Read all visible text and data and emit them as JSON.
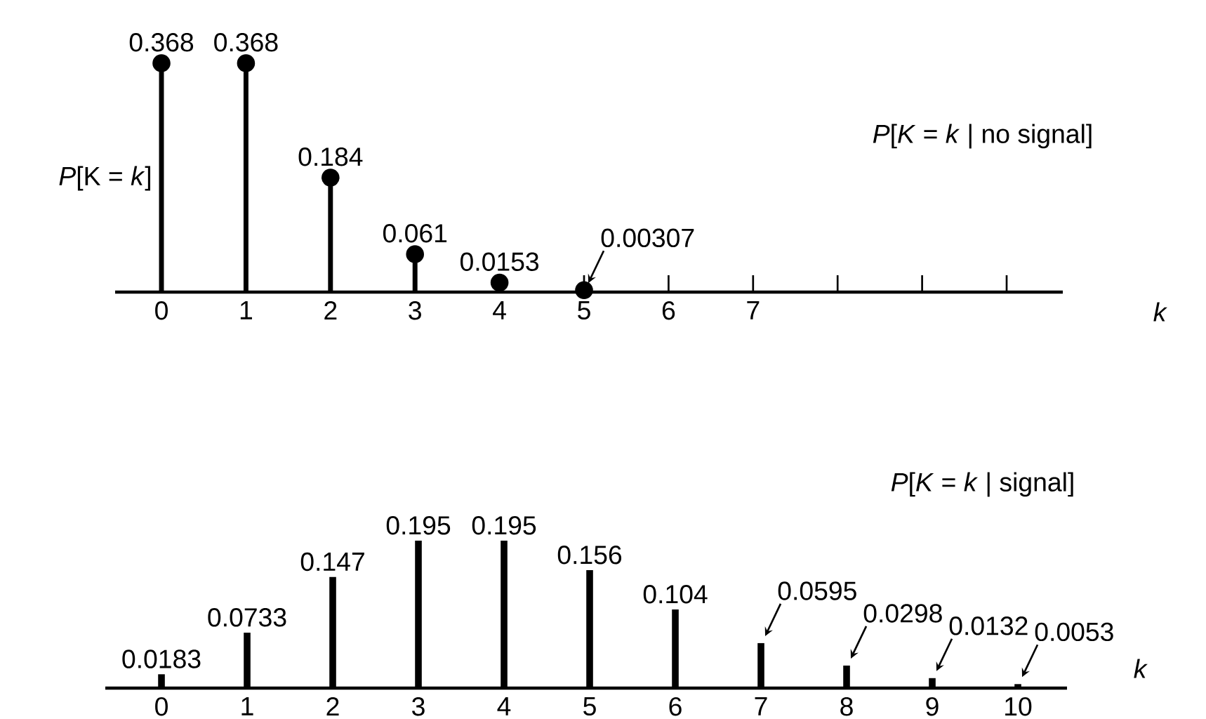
{
  "chart_data": [
    {
      "type": "lollipop",
      "title": "*P*[*K* = *k* | no signal]",
      "ylabel": "*P*[K = *k*]",
      "xlabel": "k",
      "categories": [
        "0",
        "1",
        "2",
        "3",
        "4",
        "5",
        "6",
        "7",
        null,
        null,
        null
      ],
      "values": [
        0.368,
        0.368,
        0.184,
        0.061,
        0.0153,
        0.00307,
        null,
        null,
        null,
        null,
        null
      ],
      "color": "#000000",
      "marker": "circle",
      "data_labels": true
    },
    {
      "type": "bar",
      "title": "*P*[*K* = *k* | signal]",
      "xlabel": "k",
      "categories": [
        "0",
        "1",
        "2",
        "3",
        "4",
        "5",
        "6",
        "7",
        "8",
        "9",
        "10"
      ],
      "values": [
        0.0183,
        0.0733,
        0.147,
        0.195,
        0.195,
        0.156,
        0.104,
        0.0595,
        0.0298,
        0.0132,
        0.0053
      ],
      "color": "#000000",
      "data_labels": true
    }
  ]
}
